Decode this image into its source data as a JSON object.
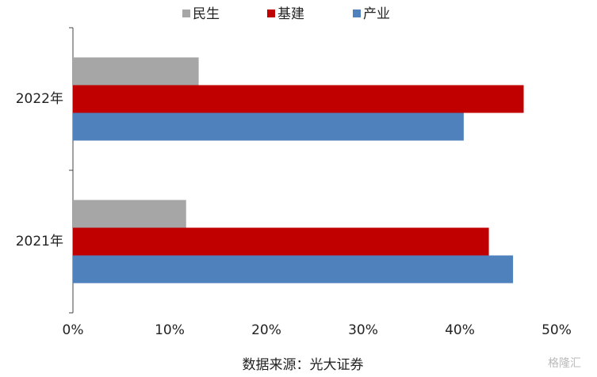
{
  "chart_data": {
    "type": "bar",
    "orientation": "horizontal",
    "categories": [
      "2022年",
      "2021年"
    ],
    "series": [
      {
        "name": "民生",
        "color": "#a6a6a6",
        "values": [
          13.0,
          11.7
        ]
      },
      {
        "name": "基建",
        "color": "#c00000",
        "values": [
          46.6,
          43.0
        ]
      },
      {
        "name": "产业",
        "color": "#4f81bd",
        "values": [
          40.4,
          45.5
        ]
      }
    ],
    "xlim": [
      0,
      50
    ],
    "xticks": [
      {
        "value": 0,
        "label": "0%"
      },
      {
        "value": 10,
        "label": "10%"
      },
      {
        "value": 20,
        "label": "20%"
      },
      {
        "value": 30,
        "label": "30%"
      },
      {
        "value": 40,
        "label": "40%"
      },
      {
        "value": 50,
        "label": "50%"
      }
    ],
    "source": "数据来源：光大证券",
    "watermark": "格隆汇",
    "legend": "top"
  }
}
